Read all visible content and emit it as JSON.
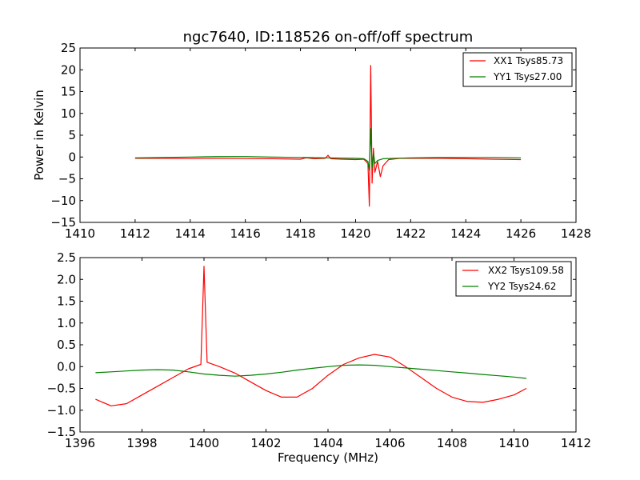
{
  "chart_data": [
    {
      "type": "line",
      "title": "ngc7640, ID:118526 on-off/off spectrum",
      "xlabel": "",
      "ylabel": "Power in Kelvin",
      "xlim": [
        1410,
        1428
      ],
      "ylim": [
        -15,
        25
      ],
      "xticks": [
        1410,
        1412,
        1414,
        1416,
        1418,
        1420,
        1422,
        1424,
        1426,
        1428
      ],
      "yticks": [
        -15,
        -10,
        -5,
        0,
        5,
        10,
        15,
        20,
        25
      ],
      "grid": false,
      "legend": "top-right",
      "series": [
        {
          "name": "XX1 Tsys85.73",
          "color": "#ff0000",
          "x": [
            1412,
            1413,
            1414,
            1415,
            1416,
            1417,
            1418,
            1418.2,
            1418.5,
            1418.9,
            1419.0,
            1419.1,
            1419.5,
            1420.0,
            1420.3,
            1420.45,
            1420.5,
            1420.55,
            1420.6,
            1420.65,
            1420.7,
            1420.8,
            1420.9,
            1421.0,
            1421.2,
            1421.6,
            1422,
            1423,
            1424,
            1425,
            1426
          ],
          "y": [
            -0.3,
            -0.3,
            -0.35,
            -0.3,
            -0.35,
            -0.4,
            -0.5,
            -0.2,
            -0.4,
            -0.3,
            0.4,
            -0.4,
            -0.5,
            -0.6,
            -0.5,
            -1.5,
            -11.3,
            21,
            -6,
            2,
            -3.5,
            -1,
            -4.5,
            -2,
            -0.6,
            -0.3,
            -0.3,
            -0.3,
            -0.4,
            -0.5,
            -0.6
          ]
        },
        {
          "name": "YY1 Tsys27.00",
          "color": "#008000",
          "x": [
            1412,
            1413,
            1414,
            1415,
            1416,
            1417,
            1418,
            1419,
            1420,
            1420.3,
            1420.45,
            1420.5,
            1420.55,
            1420.6,
            1420.65,
            1420.7,
            1420.8,
            1421.0,
            1422,
            1423,
            1424,
            1425,
            1426
          ],
          "y": [
            -0.2,
            -0.1,
            0.0,
            0.1,
            0.1,
            0.0,
            -0.1,
            -0.2,
            -0.3,
            -0.4,
            -1.0,
            -3.0,
            6.5,
            -2.5,
            1.0,
            -1.5,
            -0.8,
            -0.4,
            -0.2,
            -0.1,
            -0.1,
            -0.1,
            -0.2
          ]
        }
      ]
    },
    {
      "type": "line",
      "title": "",
      "xlabel": "Frequency (MHz)",
      "ylabel": "",
      "xlim": [
        1396,
        1412
      ],
      "ylim": [
        -1.5,
        2.5
      ],
      "xticks": [
        1396,
        1398,
        1400,
        1402,
        1404,
        1406,
        1408,
        1410,
        1412
      ],
      "yticks": [
        -1.5,
        -1.0,
        -0.5,
        0.0,
        0.5,
        1.0,
        1.5,
        2.0,
        2.5
      ],
      "grid": false,
      "legend": "top-right",
      "series": [
        {
          "name": "XX2 Tsys109.58",
          "color": "#ff0000",
          "x": [
            1396.5,
            1397.0,
            1397.5,
            1398.0,
            1398.5,
            1399.0,
            1399.5,
            1399.9,
            1400.0,
            1400.1,
            1400.5,
            1401.0,
            1401.5,
            1402.0,
            1402.5,
            1403.0,
            1403.5,
            1404.0,
            1404.5,
            1405.0,
            1405.5,
            1406.0,
            1406.5,
            1407.0,
            1407.5,
            1408.0,
            1408.5,
            1409.0,
            1409.5,
            1410.0,
            1410.4
          ],
          "y": [
            -0.75,
            -0.9,
            -0.85,
            -0.65,
            -0.45,
            -0.25,
            -0.05,
            0.05,
            2.3,
            0.1,
            0.0,
            -0.15,
            -0.35,
            -0.55,
            -0.7,
            -0.7,
            -0.5,
            -0.2,
            0.05,
            0.2,
            0.28,
            0.22,
            0.0,
            -0.25,
            -0.5,
            -0.7,
            -0.8,
            -0.82,
            -0.75,
            -0.65,
            -0.5
          ]
        },
        {
          "name": "YY2 Tsys24.62",
          "color": "#008000",
          "x": [
            1396.5,
            1397.0,
            1397.5,
            1398.0,
            1398.5,
            1399.0,
            1399.5,
            1400.0,
            1400.5,
            1401.0,
            1401.5,
            1402.0,
            1402.5,
            1403.0,
            1403.5,
            1404.0,
            1404.5,
            1405.0,
            1405.5,
            1406.0,
            1406.5,
            1407.0,
            1407.5,
            1408.0,
            1408.5,
            1409.0,
            1409.5,
            1410.0,
            1410.4
          ],
          "y": [
            -0.14,
            -0.12,
            -0.1,
            -0.08,
            -0.07,
            -0.08,
            -0.12,
            -0.17,
            -0.2,
            -0.22,
            -0.2,
            -0.17,
            -0.13,
            -0.08,
            -0.04,
            0.0,
            0.03,
            0.04,
            0.03,
            0.0,
            -0.03,
            -0.06,
            -0.09,
            -0.12,
            -0.15,
            -0.18,
            -0.21,
            -0.24,
            -0.27
          ]
        }
      ]
    }
  ]
}
